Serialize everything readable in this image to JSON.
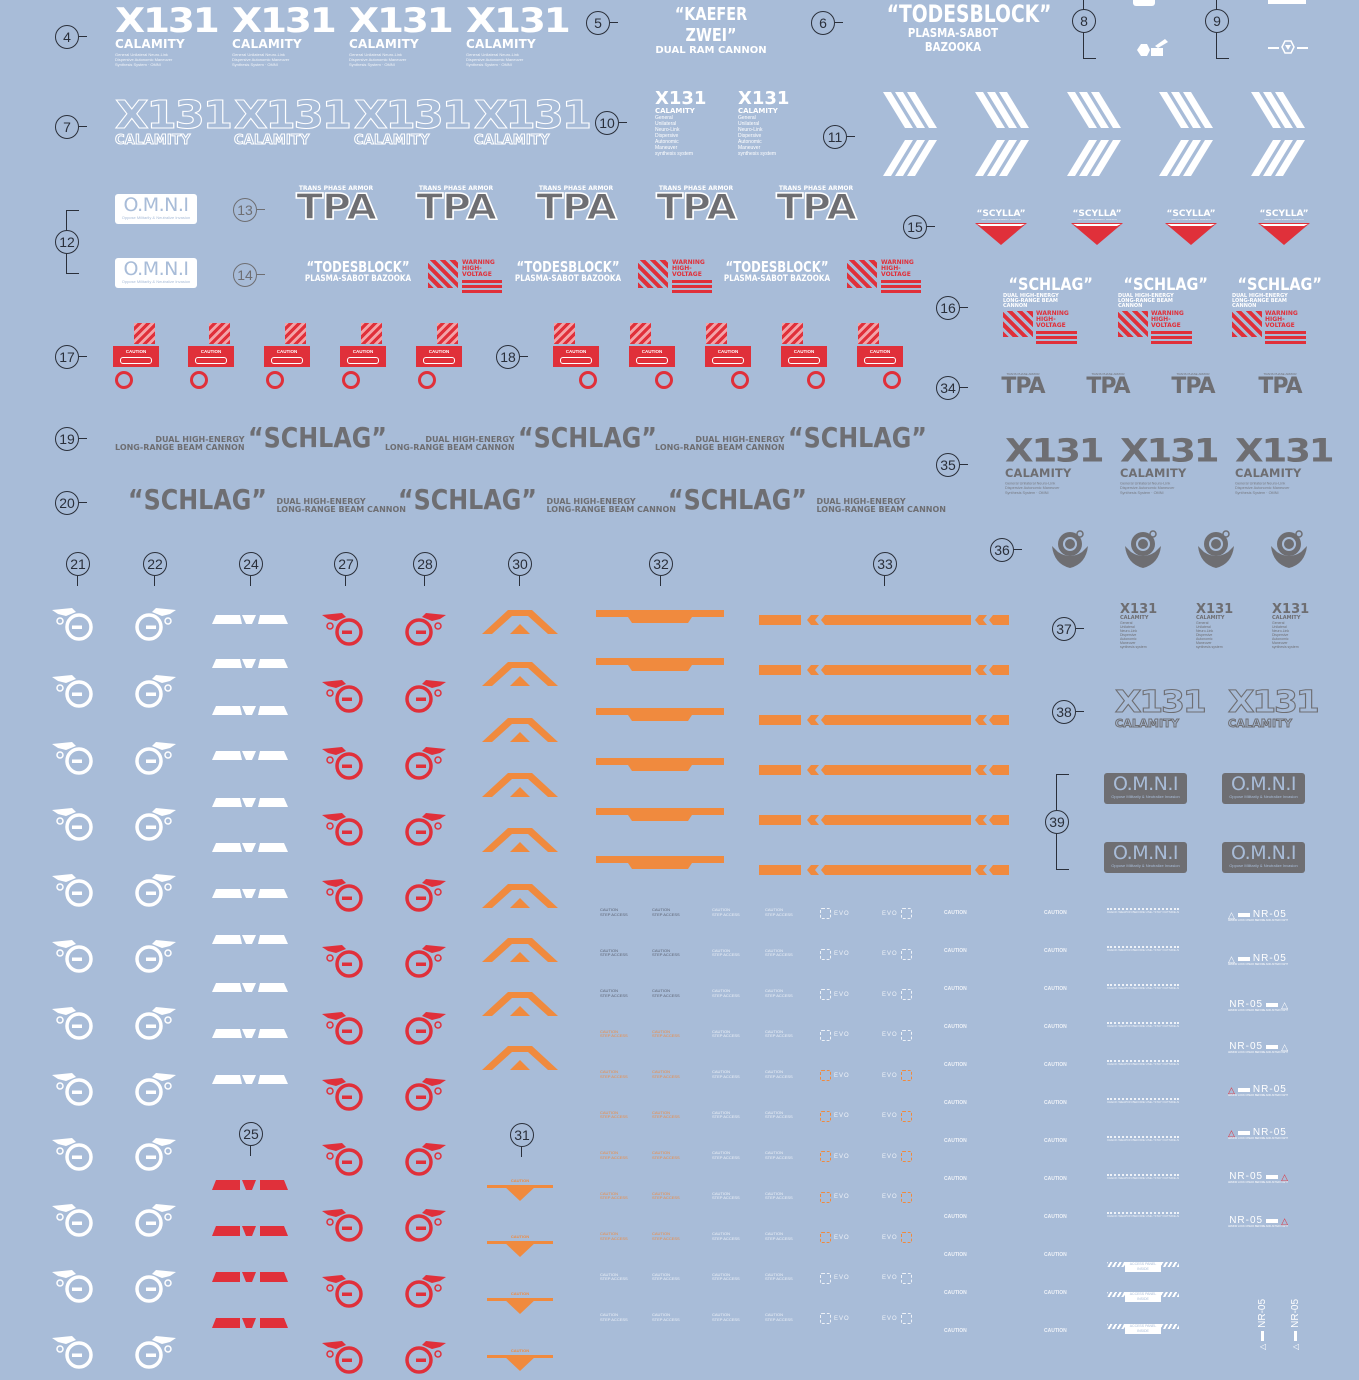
{
  "sheet": {
    "background": "#a8bcd8",
    "colors": {
      "white": "#ffffff",
      "red": "#e0303a",
      "orange": "#f08a3e",
      "gray": "#6e6e72",
      "ink": "#2a2f3a"
    }
  },
  "labels": {
    "n4": "4",
    "n5": "5",
    "n6": "6",
    "n7": "7",
    "n8": "8",
    "n9": "9",
    "n10": "10",
    "n11": "11",
    "n12": "12",
    "n13": "13",
    "n14": "14",
    "n15": "15",
    "n16": "16",
    "n17": "17",
    "n18": "18",
    "n19": "19",
    "n20": "20",
    "n21": "21",
    "n22": "22",
    "n24": "24",
    "n25": "25",
    "n27": "27",
    "n28": "28",
    "n30": "30",
    "n31": "31",
    "n32": "32",
    "n33": "33",
    "n34": "34",
    "n35": "35",
    "n36": "36",
    "n37": "37",
    "n38": "38",
    "n39": "39"
  },
  "texts": {
    "x131": "X131",
    "calamity": "CALAMITY",
    "x131_fine": "General Unilateral Neuro-Link Dispersive Autonomic Maneuver Synthesis System · OMNI",
    "kaefer_title": "“KAEFER ZWEI”",
    "kaefer_sub": "DUAL RAM CANNON",
    "todes_title": "“TODESBLOCK”",
    "todes_sub": "PLASMA-SABOT BAZOOKA",
    "gunit_lines": [
      "General",
      "Unilateral",
      "Neuro-Link",
      "Dispersive",
      "Autonomic",
      "Maneuver",
      "synthesis system"
    ],
    "omni": "O.M.N.I",
    "omni_sub": "Oppose Militarily & Neutralize Invasion",
    "tpa_top": "TRANS PHASE ARMOR",
    "tpa": "TPA",
    "warning": "WARNING",
    "high_voltage": "HIGH-VOLTAGE",
    "scylla": "“SCYLLA”",
    "scylla_sub": "MULTI-PHASE ENERGY CANNON",
    "schlag": "“SCHLAG”",
    "schlag_sub1": "DUAL HIGH-ENERGY",
    "schlag_sub2": "LONG-RANGE BEAM CANNON",
    "caution": "CAUTION",
    "step_access": "STEP ACCESS",
    "evo": "EVO",
    "nr05": "NR-05",
    "nr05_sub": "ARMOR LOCK CHECK BEFORE AND AFTER FIGHT",
    "access_panel": "ACCESS PANEL INSIDE",
    "check_weapon": "CHECK WEAPON BEFORE USE / STAY OUTSIDE AREA"
  }
}
